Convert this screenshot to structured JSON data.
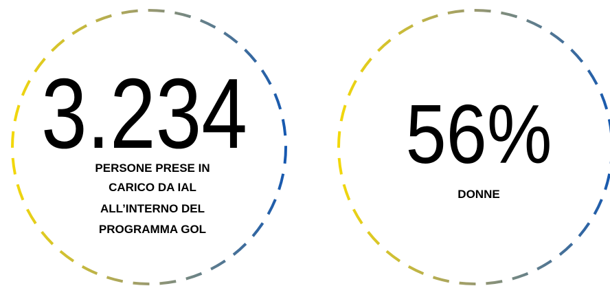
{
  "stats": [
    {
      "value": "3.234",
      "label": [
        "PERSONE PRESE IN",
        "CARICO DA IAL",
        "ALL’INTERNO DEL",
        "PROGRAMMA GOL"
      ]
    },
    {
      "value": "56%",
      "label": [
        "DONNE"
      ]
    }
  ]
}
